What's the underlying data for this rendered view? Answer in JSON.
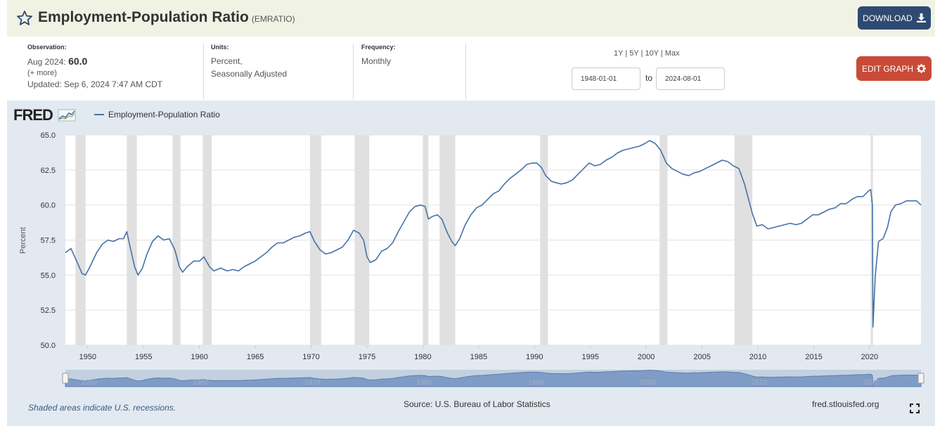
{
  "header": {
    "title": "Employment-Population Ratio",
    "series_id": "(EMRATIO)",
    "download_label": "DOWNLOAD",
    "icons": {
      "favorite": "star-icon",
      "download": "download-icon",
      "edit": "gear-icon",
      "fullscreen": "fullscreen-icon"
    }
  },
  "meta": {
    "observation_label": "Observation:",
    "observation_date": "Aug 2024:",
    "observation_value": "60.0",
    "more": "(+ more)",
    "updated": "Updated: Sep 6, 2024 7:47 AM CDT",
    "units_label": "Units:",
    "units_line1": "Percent,",
    "units_line2": "Seasonally Adjusted",
    "frequency_label": "Frequency:",
    "frequency_value": "Monthly"
  },
  "range": {
    "links": [
      "1Y",
      "5Y",
      "10Y",
      "Max"
    ],
    "start": "1948-01-01",
    "to_label": "to",
    "end": "2024-08-01",
    "edit_label": "EDIT GRAPH"
  },
  "footer": {
    "logo": "FRED",
    "recession_note": "Shaded areas indicate U.S. recessions.",
    "source": "Source: U.S. Bureau of Labor Statistics",
    "site": "fred.stlouisfed.org"
  },
  "colors": {
    "line": "#4572a7",
    "recession": "#e0e0e0",
    "download": "#2e4a72",
    "edit": "#c94b37",
    "panel": "#e2e9f0"
  },
  "chart_data": {
    "type": "line",
    "title": "",
    "series": [
      {
        "name": "Employment-Population Ratio",
        "points": [
          [
            1948.0,
            56.6
          ],
          [
            1948.5,
            56.9
          ],
          [
            1948.9,
            56.2
          ],
          [
            1949.5,
            55.1
          ],
          [
            1949.8,
            55.0
          ],
          [
            1950.2,
            55.6
          ],
          [
            1950.8,
            56.6
          ],
          [
            1951.3,
            57.2
          ],
          [
            1951.8,
            57.5
          ],
          [
            1952.3,
            57.4
          ],
          [
            1952.8,
            57.6
          ],
          [
            1953.2,
            57.6
          ],
          [
            1953.5,
            58.1
          ],
          [
            1953.8,
            57.0
          ],
          [
            1954.2,
            55.6
          ],
          [
            1954.5,
            55.0
          ],
          [
            1954.9,
            55.5
          ],
          [
            1955.3,
            56.5
          ],
          [
            1955.8,
            57.4
          ],
          [
            1956.3,
            57.8
          ],
          [
            1956.8,
            57.5
          ],
          [
            1957.3,
            57.6
          ],
          [
            1957.8,
            56.8
          ],
          [
            1958.2,
            55.6
          ],
          [
            1958.5,
            55.2
          ],
          [
            1958.9,
            55.6
          ],
          [
            1959.5,
            56.0
          ],
          [
            1960.0,
            56.0
          ],
          [
            1960.4,
            56.3
          ],
          [
            1960.9,
            55.6
          ],
          [
            1961.3,
            55.3
          ],
          [
            1961.9,
            55.5
          ],
          [
            1962.5,
            55.3
          ],
          [
            1963.0,
            55.4
          ],
          [
            1963.5,
            55.3
          ],
          [
            1964.0,
            55.6
          ],
          [
            1964.5,
            55.8
          ],
          [
            1965.0,
            56.0
          ],
          [
            1965.5,
            56.3
          ],
          [
            1966.0,
            56.6
          ],
          [
            1966.5,
            57.0
          ],
          [
            1967.0,
            57.3
          ],
          [
            1967.5,
            57.3
          ],
          [
            1968.0,
            57.5
          ],
          [
            1968.5,
            57.7
          ],
          [
            1969.0,
            57.8
          ],
          [
            1969.5,
            58.0
          ],
          [
            1969.9,
            58.1
          ],
          [
            1970.3,
            57.4
          ],
          [
            1970.8,
            56.8
          ],
          [
            1971.3,
            56.5
          ],
          [
            1971.8,
            56.6
          ],
          [
            1972.3,
            56.8
          ],
          [
            1972.8,
            57.0
          ],
          [
            1973.3,
            57.5
          ],
          [
            1973.8,
            58.2
          ],
          [
            1974.3,
            58.0
          ],
          [
            1974.7,
            57.5
          ],
          [
            1975.0,
            56.3
          ],
          [
            1975.3,
            55.9
          ],
          [
            1975.8,
            56.1
          ],
          [
            1976.3,
            56.7
          ],
          [
            1976.8,
            56.9
          ],
          [
            1977.3,
            57.3
          ],
          [
            1977.8,
            58.1
          ],
          [
            1978.3,
            58.8
          ],
          [
            1978.8,
            59.5
          ],
          [
            1979.3,
            59.9
          ],
          [
            1979.8,
            60.0
          ],
          [
            1980.2,
            59.9
          ],
          [
            1980.5,
            59.0
          ],
          [
            1980.9,
            59.2
          ],
          [
            1981.3,
            59.3
          ],
          [
            1981.7,
            59.0
          ],
          [
            1982.2,
            58.0
          ],
          [
            1982.6,
            57.4
          ],
          [
            1982.9,
            57.1
          ],
          [
            1983.3,
            57.6
          ],
          [
            1983.8,
            58.6
          ],
          [
            1984.3,
            59.3
          ],
          [
            1984.8,
            59.8
          ],
          [
            1985.3,
            60.0
          ],
          [
            1985.8,
            60.4
          ],
          [
            1986.3,
            60.8
          ],
          [
            1986.8,
            61.0
          ],
          [
            1987.3,
            61.5
          ],
          [
            1987.8,
            61.9
          ],
          [
            1988.3,
            62.2
          ],
          [
            1988.8,
            62.5
          ],
          [
            1989.3,
            62.9
          ],
          [
            1989.8,
            63.0
          ],
          [
            1990.2,
            63.0
          ],
          [
            1990.6,
            62.7
          ],
          [
            1991.0,
            62.1
          ],
          [
            1991.5,
            61.7
          ],
          [
            1991.9,
            61.6
          ],
          [
            1992.4,
            61.5
          ],
          [
            1992.9,
            61.6
          ],
          [
            1993.4,
            61.8
          ],
          [
            1993.9,
            62.2
          ],
          [
            1994.4,
            62.6
          ],
          [
            1994.9,
            63.0
          ],
          [
            1995.4,
            62.8
          ],
          [
            1995.9,
            62.9
          ],
          [
            1996.4,
            63.2
          ],
          [
            1996.9,
            63.4
          ],
          [
            1997.4,
            63.7
          ],
          [
            1997.9,
            63.9
          ],
          [
            1998.4,
            64.0
          ],
          [
            1998.9,
            64.1
          ],
          [
            1999.4,
            64.2
          ],
          [
            1999.9,
            64.4
          ],
          [
            2000.3,
            64.6
          ],
          [
            2000.8,
            64.4
          ],
          [
            2001.3,
            63.9
          ],
          [
            2001.8,
            63.0
          ],
          [
            2002.3,
            62.6
          ],
          [
            2002.8,
            62.4
          ],
          [
            2003.3,
            62.2
          ],
          [
            2003.8,
            62.1
          ],
          [
            2004.3,
            62.3
          ],
          [
            2004.8,
            62.4
          ],
          [
            2005.3,
            62.6
          ],
          [
            2005.8,
            62.8
          ],
          [
            2006.3,
            63.0
          ],
          [
            2006.8,
            63.2
          ],
          [
            2007.3,
            63.1
          ],
          [
            2007.8,
            62.8
          ],
          [
            2008.3,
            62.6
          ],
          [
            2008.8,
            61.5
          ],
          [
            2009.2,
            60.3
          ],
          [
            2009.5,
            59.4
          ],
          [
            2009.9,
            58.5
          ],
          [
            2010.4,
            58.6
          ],
          [
            2010.9,
            58.3
          ],
          [
            2011.4,
            58.4
          ],
          [
            2011.9,
            58.5
          ],
          [
            2012.4,
            58.6
          ],
          [
            2012.9,
            58.7
          ],
          [
            2013.4,
            58.6
          ],
          [
            2013.9,
            58.7
          ],
          [
            2014.4,
            59.0
          ],
          [
            2014.9,
            59.3
          ],
          [
            2015.4,
            59.3
          ],
          [
            2015.9,
            59.5
          ],
          [
            2016.4,
            59.7
          ],
          [
            2016.9,
            59.8
          ],
          [
            2017.4,
            60.1
          ],
          [
            2017.9,
            60.1
          ],
          [
            2018.4,
            60.4
          ],
          [
            2018.9,
            60.6
          ],
          [
            2019.4,
            60.6
          ],
          [
            2019.9,
            61.0
          ],
          [
            2020.1,
            61.1
          ],
          [
            2020.25,
            60.0
          ],
          [
            2020.3,
            51.3
          ],
          [
            2020.5,
            54.9
          ],
          [
            2020.8,
            57.4
          ],
          [
            2021.2,
            57.6
          ],
          [
            2021.6,
            58.4
          ],
          [
            2021.9,
            59.5
          ],
          [
            2022.3,
            60.0
          ],
          [
            2022.8,
            60.1
          ],
          [
            2023.3,
            60.3
          ],
          [
            2023.8,
            60.3
          ],
          [
            2024.2,
            60.3
          ],
          [
            2024.6,
            60.0
          ]
        ]
      }
    ],
    "recessions": [
      [
        1948.9,
        1949.8
      ],
      [
        1953.5,
        1954.4
      ],
      [
        1957.6,
        1958.3
      ],
      [
        1960.3,
        1961.1
      ],
      [
        1969.9,
        1970.9
      ],
      [
        1973.9,
        1975.2
      ],
      [
        1980.0,
        1980.5
      ],
      [
        1981.5,
        1982.9
      ],
      [
        1990.5,
        1991.2
      ],
      [
        2001.2,
        2001.9
      ],
      [
        2007.9,
        2009.5
      ],
      [
        2020.1,
        2020.3
      ]
    ],
    "xlabel": "",
    "ylabel": "Percent",
    "xlim": [
      1948.0,
      2024.6
    ],
    "ylim": [
      50.0,
      65.0
    ],
    "yticks": [
      "65.0",
      "62.5",
      "60.0",
      "57.5",
      "55.0",
      "52.5",
      "50.0"
    ],
    "xticks": [
      "1950",
      "1955",
      "1960",
      "1965",
      "1970",
      "1975",
      "1980",
      "1985",
      "1990",
      "1995",
      "2000",
      "2005",
      "2010",
      "2015",
      "2020"
    ],
    "navigator_labels": [
      "1950",
      "1960",
      "1970",
      "1980",
      "1990",
      "2000",
      "2010",
      "2020"
    ],
    "grid": true
  }
}
